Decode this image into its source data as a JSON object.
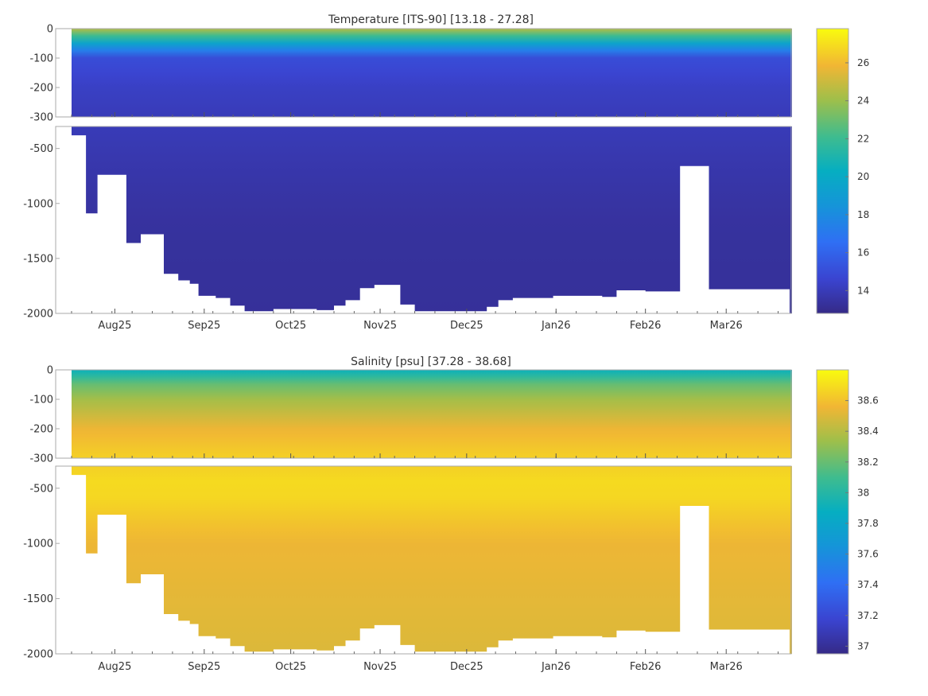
{
  "chart_data": [
    {
      "type": "heatmap",
      "title": "Temperature [ITS-90]   [13.18 - 27.28]",
      "variable": "Temperature",
      "unit": "ITS-90",
      "range": [
        13.18,
        27.28
      ],
      "colorbar": {
        "ticks": [
          "14",
          "16",
          "18",
          "20",
          "22",
          "24",
          "26"
        ],
        "tick_values": [
          14,
          16,
          18,
          20,
          22,
          24,
          26
        ],
        "lim": [
          12.8,
          27.8
        ]
      },
      "upper_panel": {
        "yticks": [
          "0",
          "-100",
          "-200",
          "-300"
        ],
        "ylim": [
          -300,
          0
        ]
      },
      "lower_panel": {
        "yticks": [
          "-500",
          "-1000",
          "-1500",
          "-2000"
        ],
        "ylim": [
          -2000,
          -300
        ]
      },
      "xticks": [
        "Aug25",
        "Sep25",
        "Oct25",
        "Nov25",
        "Dec25",
        "Jan26",
        "Feb26",
        "Mar26"
      ],
      "surface_maximum": {
        "depth": 0,
        "value": 27.0
      },
      "profile": {
        "depth": [
          0,
          -50,
          -100,
          -200,
          -300,
          -800,
          -1200,
          -2000
        ],
        "value": [
          24.5,
          19.5,
          15.0,
          14.3,
          14.0,
          13.6,
          13.35,
          13.25
        ]
      }
    },
    {
      "type": "heatmap",
      "title": "Salinity [psu]   [37.28 - 38.68]",
      "variable": "Salinity",
      "unit": "psu",
      "range": [
        37.28,
        38.68
      ],
      "colorbar": {
        "ticks": [
          "37",
          "37.2",
          "37.4",
          "37.6",
          "37.8",
          "38",
          "38.2",
          "38.4",
          "38.6"
        ],
        "tick_values": [
          37.0,
          37.2,
          37.4,
          37.6,
          37.8,
          38.0,
          38.2,
          38.4,
          38.6
        ],
        "lim": [
          36.95,
          38.8
        ]
      },
      "upper_panel": {
        "yticks": [
          "0",
          "-100",
          "-200",
          "-300"
        ],
        "ylim": [
          -300,
          0
        ]
      },
      "lower_panel": {
        "yticks": [
          "-500",
          "-1000",
          "-1500",
          "-2000"
        ],
        "ylim": [
          -2000,
          -300
        ]
      },
      "xticks": [
        "Aug25",
        "Sep25",
        "Oct25",
        "Nov25",
        "Dec25",
        "Jan26",
        "Feb26",
        "Mar26"
      ],
      "surface_minimum": {
        "depth": -10,
        "value": 37.3
      },
      "profile": {
        "depth": [
          0,
          -50,
          -100,
          -200,
          -300,
          -500,
          -1000,
          -2000
        ],
        "value": [
          37.9,
          38.2,
          38.35,
          38.55,
          38.65,
          38.7,
          38.55,
          38.5
        ]
      }
    }
  ],
  "x_axis": {
    "ticks": [
      {
        "label": "Aug25",
        "day": 31
      },
      {
        "label": "Sep25",
        "day": 62
      },
      {
        "label": "Oct25",
        "day": 92
      },
      {
        "label": "Nov25",
        "day": 123
      },
      {
        "label": "Dec25",
        "day": 153
      },
      {
        "label": "Jan26",
        "day": 184
      },
      {
        "label": "Feb26",
        "day": 215
      },
      {
        "label": "Mar26",
        "day": 243
      }
    ],
    "start_day": 16,
    "end_day": 265
  },
  "max_profile_depth": [
    {
      "day": 16,
      "depth": -380
    },
    {
      "day": 21,
      "depth": -1090
    },
    {
      "day": 25,
      "depth": -740
    },
    {
      "day": 35,
      "depth": -1360
    },
    {
      "day": 40,
      "depth": -1280
    },
    {
      "day": 48,
      "depth": -1640
    },
    {
      "day": 53,
      "depth": -1700
    },
    {
      "day": 57,
      "depth": -1730
    },
    {
      "day": 60,
      "depth": -1840
    },
    {
      "day": 66,
      "depth": -1860
    },
    {
      "day": 71,
      "depth": -1930
    },
    {
      "day": 76,
      "depth": -1980
    },
    {
      "day": 86,
      "depth": -1960
    },
    {
      "day": 101,
      "depth": -1970
    },
    {
      "day": 107,
      "depth": -1930
    },
    {
      "day": 111,
      "depth": -1880
    },
    {
      "day": 116,
      "depth": -1770
    },
    {
      "day": 121,
      "depth": -1740
    },
    {
      "day": 130,
      "depth": -1920
    },
    {
      "day": 135,
      "depth": -1980
    },
    {
      "day": 160,
      "depth": -1940
    },
    {
      "day": 164,
      "depth": -1880
    },
    {
      "day": 169,
      "depth": -1860
    },
    {
      "day": 183,
      "depth": -1840
    },
    {
      "day": 200,
      "depth": -1850
    },
    {
      "day": 205,
      "depth": -1790
    },
    {
      "day": 215,
      "depth": -1800
    },
    {
      "day": 227,
      "depth": -660
    },
    {
      "day": 237,
      "depth": -1780
    },
    {
      "day": 247,
      "depth": -1780
    }
  ]
}
